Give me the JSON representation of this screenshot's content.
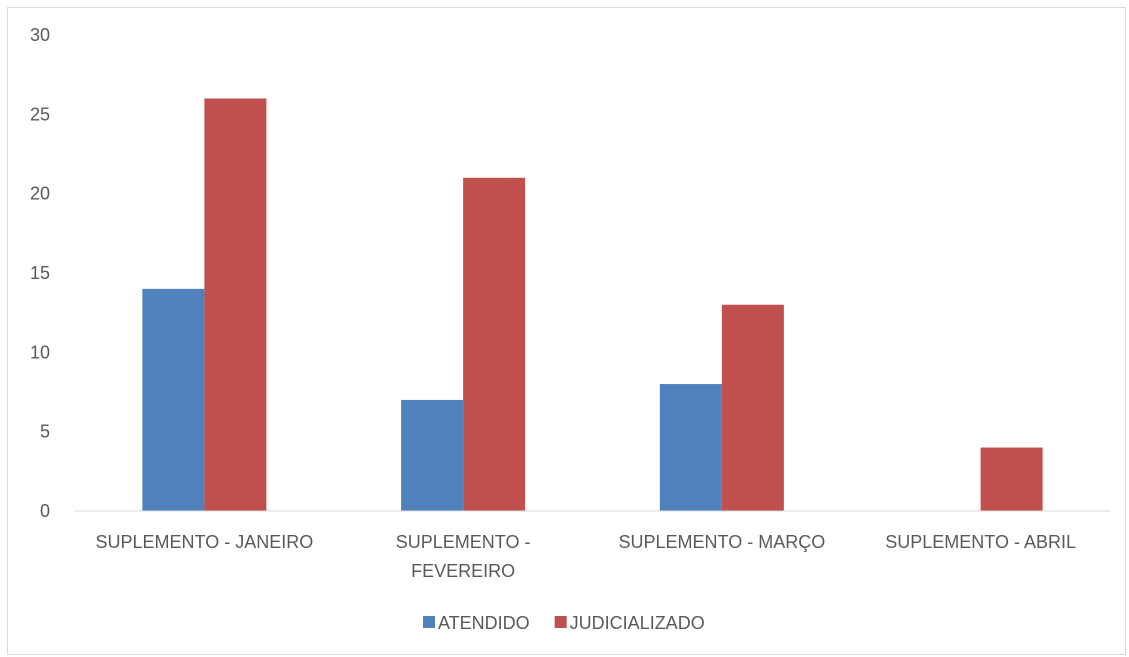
{
  "chart_data": {
    "type": "bar",
    "title": "",
    "xlabel": "",
    "ylabel": "",
    "categories": [
      [
        "SUPLEMENTO - JANEIRO"
      ],
      [
        "SUPLEMENTO -",
        "FEVEREIRO"
      ],
      [
        "SUPLEMENTO - MARÇO"
      ],
      [
        "SUPLEMENTO - ABRIL"
      ]
    ],
    "series": [
      {
        "name": "ATENDIDO",
        "color": "#4f81bd",
        "values": [
          14,
          7,
          8,
          0
        ]
      },
      {
        "name": "JUDICIALIZADO",
        "color": "#c0504d",
        "values": [
          26,
          21,
          13,
          4
        ]
      }
    ],
    "ylim": [
      0,
      30
    ],
    "yticks": [
      0,
      5,
      10,
      15,
      20,
      25,
      30
    ],
    "grid": false,
    "legend_position": "bottom"
  }
}
